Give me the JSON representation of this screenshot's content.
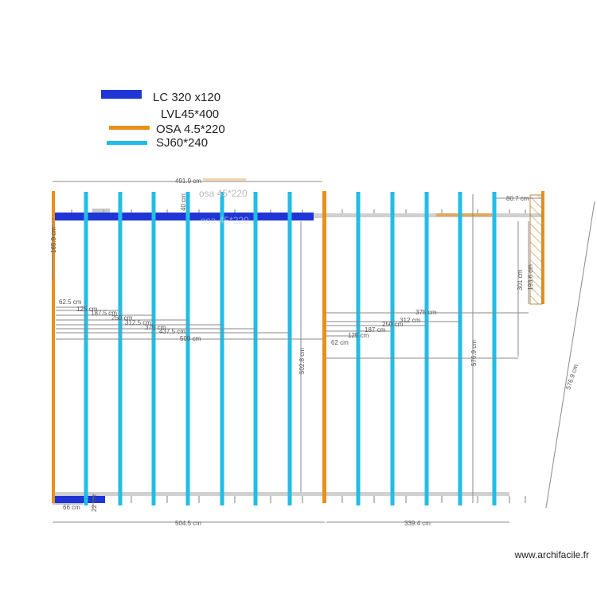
{
  "legend": {
    "items": [
      {
        "label": "LC 320 x120",
        "color": "#1f35d6",
        "type": "lc"
      },
      {
        "label": "LVL45*400",
        "color": "",
        "type": "lvl"
      },
      {
        "label": "OSA 4.5*220",
        "color": "#e8901a",
        "type": "osa"
      },
      {
        "label": "SJ60*240",
        "color": "#22bde6",
        "type": "sj"
      }
    ]
  },
  "plan_labels": {
    "osa_ghost": "osa 45*220",
    "osa_ghost_2": "osa 45*220"
  },
  "dimensions": {
    "top_width": "491.9 cm",
    "top_right": "80.7 cm",
    "left_vertical": "165.9 cm",
    "lc_offset": "40 cm",
    "mid_height": "502.8 cm",
    "right_height_301": "301 cm",
    "right_height_193": "193.6 cm",
    "right_height_576": "576.9 cm",
    "diag_576": "576.9 cm",
    "left_runs": [
      "62.5 cm",
      "125 cm",
      "187.5 cm",
      "250 cm",
      "312.5 cm",
      "375 cm",
      "437.5 cm",
      "500 cm"
    ],
    "right_runs": [
      "375 cm",
      "312 cm",
      "250 cm",
      "187 cm",
      "125 cm",
      "62 cm"
    ],
    "bottom_66": "66 cm",
    "bottom_22": "22 cm",
    "bottom_left_total": "504.5 cm",
    "bottom_right_total": "339.4 cm"
  },
  "footer": {
    "watermark": "www.archifacile.fr"
  },
  "colors": {
    "lc": "#1f35d6",
    "osa": "#e8901a",
    "sj": "#22bde6",
    "lvl": "#c9c9c9",
    "dim": "#8a8a8a"
  }
}
